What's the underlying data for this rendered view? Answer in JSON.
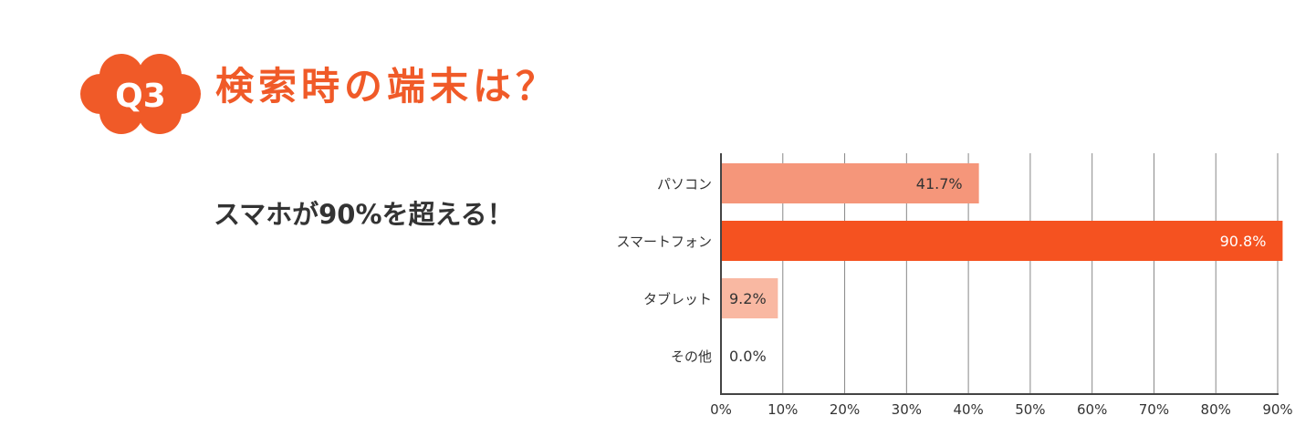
{
  "header": {
    "badge": "Q3",
    "title": "検索時の端末は？"
  },
  "subtitle": "スマホが90%を超える！",
  "colors": {
    "accent": "#f05a28",
    "text": "#333333",
    "grid": "#888888"
  },
  "chart_data": {
    "type": "bar",
    "orientation": "horizontal",
    "categories": [
      "パソコン",
      "スマートフォン",
      "タブレット",
      "その他"
    ],
    "values": [
      41.7,
      90.8,
      9.2,
      0.0
    ],
    "value_labels": [
      "41.7%",
      "90.8%",
      "9.2%",
      "0.0%"
    ],
    "bar_colors": [
      "#f5967a",
      "#f55220",
      "#f9b8a2",
      "#f9b8a2"
    ],
    "xlim": [
      0,
      90
    ],
    "xticks": [
      "0%",
      "10%",
      "20%",
      "30%",
      "40%",
      "50%",
      "60%",
      "70%",
      "80%",
      "90%"
    ],
    "grid": true
  }
}
